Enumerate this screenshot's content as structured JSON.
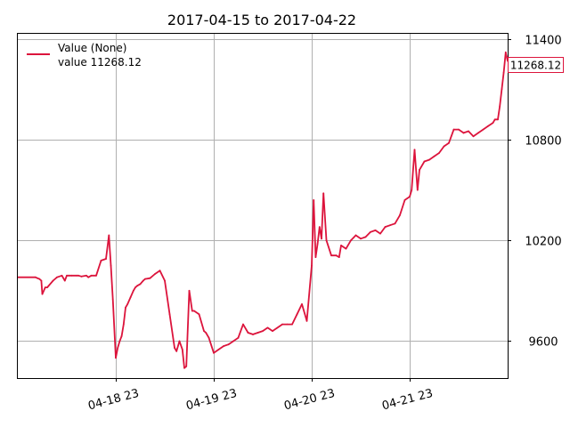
{
  "chart_data": {
    "type": "line",
    "title": "2017-04-15 to 2017-04-22",
    "xlabel": "",
    "ylabel": "",
    "y_axis_side": "right",
    "xlim": [
      17.0,
      22.0
    ],
    "ylim": [
      9380,
      11430
    ],
    "x_ticks": [
      {
        "x": 18.0,
        "label": "04-18 23"
      },
      {
        "x": 19.0,
        "label": "04-19 23"
      },
      {
        "x": 20.0,
        "label": "04-20 23"
      },
      {
        "x": 21.0,
        "label": "04-21 23"
      }
    ],
    "y_ticks": [
      {
        "y": 9600,
        "label": "9600"
      },
      {
        "y": 10200,
        "label": "10200"
      },
      {
        "y": 10800,
        "label": "10800"
      },
      {
        "y": 11400,
        "label": "11400"
      }
    ],
    "grid": true,
    "legend": {
      "placement": "top-left",
      "line1": "Value (None)",
      "line2": "value 11268.12"
    },
    "last_value_label": "11268.12",
    "series": [
      {
        "name": "Value (None)",
        "color": "#dc143c",
        "x": [
          17.0,
          17.18,
          17.2,
          17.22,
          17.24,
          17.25,
          17.28,
          17.3,
          17.36,
          17.4,
          17.45,
          17.48,
          17.5,
          17.52,
          17.55,
          17.6,
          17.62,
          17.65,
          17.7,
          17.72,
          17.75,
          17.8,
          17.85,
          17.9,
          17.93,
          17.95,
          17.97,
          18.0,
          18.02,
          18.04,
          18.06,
          18.08,
          18.1,
          18.12,
          18.15,
          18.18,
          18.2,
          18.22,
          18.25,
          18.28,
          18.3,
          18.35,
          18.4,
          18.45,
          18.5,
          18.55,
          18.6,
          18.62,
          18.65,
          18.68,
          18.7,
          18.72,
          18.75,
          18.78,
          18.8,
          18.85,
          18.9,
          18.92,
          18.95,
          19.0,
          19.05,
          19.1,
          19.15,
          19.2,
          19.25,
          19.3,
          19.35,
          19.4,
          19.45,
          19.5,
          19.55,
          19.6,
          19.65,
          19.7,
          19.75,
          19.8,
          19.85,
          19.9,
          19.95,
          20.0,
          20.02,
          20.04,
          20.06,
          20.08,
          20.1,
          20.12,
          20.15,
          20.2,
          20.25,
          20.28,
          20.3,
          20.35,
          20.4,
          20.45,
          20.5,
          20.55,
          20.6,
          20.65,
          20.7,
          20.75,
          20.8,
          20.85,
          20.9,
          20.95,
          21.0,
          21.02,
          21.05,
          21.08,
          21.1,
          21.15,
          21.2,
          21.25,
          21.3,
          21.35,
          21.4,
          21.45,
          21.5,
          21.55,
          21.6,
          21.65,
          21.7,
          21.75,
          21.8,
          21.85,
          21.87,
          21.9,
          21.92,
          21.94,
          21.96,
          21.98,
          22.0
        ],
        "values": [
          9980,
          9980,
          9975,
          9970,
          9960,
          9880,
          9920,
          9920,
          9960,
          9980,
          9990,
          9960,
          9990,
          9990,
          9990,
          9990,
          9990,
          9985,
          9990,
          9980,
          9990,
          9990,
          10080,
          10090,
          10230,
          10050,
          9850,
          9500,
          9560,
          9600,
          9630,
          9700,
          9800,
          9820,
          9860,
          9900,
          9920,
          9930,
          9940,
          9960,
          9970,
          9975,
          10000,
          10020,
          9960,
          9760,
          9560,
          9540,
          9600,
          9550,
          9440,
          9450,
          9900,
          9780,
          9780,
          9760,
          9660,
          9650,
          9620,
          9530,
          9550,
          9570,
          9580,
          9600,
          9620,
          9700,
          9650,
          9640,
          9650,
          9660,
          9680,
          9660,
          9680,
          9700,
          9700,
          9700,
          9760,
          9820,
          9720,
          10050,
          10440,
          10100,
          10180,
          10280,
          10210,
          10480,
          10200,
          10110,
          10110,
          10100,
          10170,
          10150,
          10200,
          10230,
          10210,
          10220,
          10250,
          10260,
          10240,
          10280,
          10290,
          10300,
          10350,
          10440,
          10460,
          10500,
          10740,
          10500,
          10620,
          10670,
          10680,
          10700,
          10720,
          10760,
          10780,
          10860,
          10860,
          10840,
          10850,
          10820,
          10840,
          10860,
          10880,
          10900,
          10920,
          10920,
          11000,
          11100,
          11200,
          11320,
          11268.12
        ]
      }
    ]
  }
}
